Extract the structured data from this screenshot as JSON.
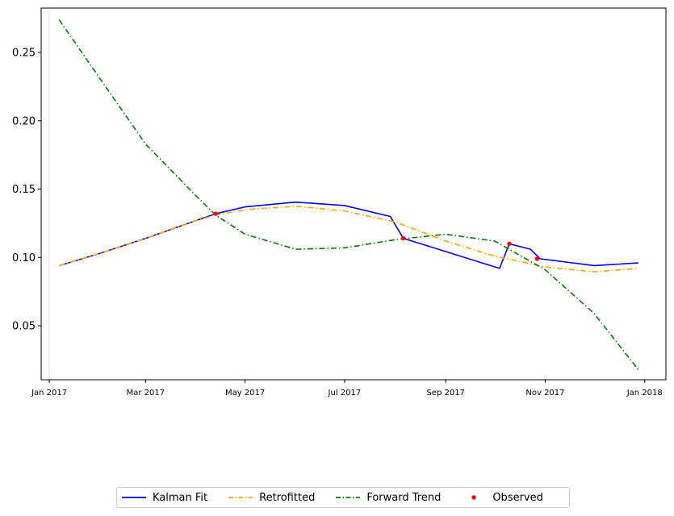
{
  "chart_data": {
    "type": "line",
    "title": "",
    "xlabel": "",
    "ylabel": "",
    "x_axis": {
      "type": "date",
      "range": [
        "2016-12-27",
        "2018-01-14"
      ],
      "ticks": [
        {
          "date": "2017-01-01",
          "label": "Jan 2017"
        },
        {
          "date": "2017-03-01",
          "label": "Mar 2017"
        },
        {
          "date": "2017-05-01",
          "label": "May 2017"
        },
        {
          "date": "2017-07-01",
          "label": "Jul 2017"
        },
        {
          "date": "2017-09-01",
          "label": "Sep 2017"
        },
        {
          "date": "2017-11-01",
          "label": "Nov 2017"
        },
        {
          "date": "2018-01-01",
          "label": "Jan 2018"
        }
      ]
    },
    "y_axis": {
      "range": [
        0.0105,
        0.2825
      ],
      "ticks": [
        {
          "value": 0.05,
          "label": "0.05"
        },
        {
          "value": 0.1,
          "label": "0.10"
        },
        {
          "value": 0.15,
          "label": "0.15"
        },
        {
          "value": 0.2,
          "label": "0.20"
        },
        {
          "value": 0.25,
          "label": "0.25"
        }
      ]
    },
    "vline": {
      "date": "2017-01-01",
      "color": "#e0e0e0"
    },
    "legend_position": "bottom-center, below plot",
    "series": [
      {
        "name": "Kalman Fit",
        "color": "#0000ff",
        "style": "solid",
        "points": [
          [
            "2017-01-07",
            0.094
          ],
          [
            "2017-02-01",
            0.103
          ],
          [
            "2017-03-01",
            0.114
          ],
          [
            "2017-04-01",
            0.127
          ],
          [
            "2017-04-13",
            0.132
          ],
          [
            "2017-05-01",
            0.137
          ],
          [
            "2017-06-01",
            0.1405
          ],
          [
            "2017-07-01",
            0.138
          ],
          [
            "2017-07-29",
            0.13
          ],
          [
            "2017-08-06",
            0.114
          ],
          [
            "2017-10-04",
            0.092
          ],
          [
            "2017-10-10",
            0.11
          ],
          [
            "2017-10-23",
            0.106
          ],
          [
            "2017-10-29",
            0.099
          ],
          [
            "2017-12-01",
            0.094
          ],
          [
            "2017-12-28",
            0.096
          ]
        ]
      },
      {
        "name": "Retrofitted",
        "color": "#ffa500",
        "style": "dashdot",
        "points": [
          [
            "2017-01-07",
            0.094
          ],
          [
            "2017-02-01",
            0.103
          ],
          [
            "2017-03-01",
            0.114
          ],
          [
            "2017-04-01",
            0.127
          ],
          [
            "2017-04-13",
            0.131
          ],
          [
            "2017-05-01",
            0.135
          ],
          [
            "2017-06-01",
            0.1375
          ],
          [
            "2017-07-01",
            0.134
          ],
          [
            "2017-08-01",
            0.126
          ],
          [
            "2017-09-01",
            0.112
          ],
          [
            "2017-10-01",
            0.101
          ],
          [
            "2017-11-01",
            0.093
          ],
          [
            "2017-12-01",
            0.0895
          ],
          [
            "2017-12-28",
            0.092
          ]
        ]
      },
      {
        "name": "Forward Trend",
        "color": "#008000",
        "style": "dashdot",
        "points": [
          [
            "2017-01-07",
            0.274
          ],
          [
            "2017-02-01",
            0.231
          ],
          [
            "2017-03-01",
            0.183
          ],
          [
            "2017-04-01",
            0.145
          ],
          [
            "2017-04-13",
            0.131
          ],
          [
            "2017-05-01",
            0.117
          ],
          [
            "2017-06-01",
            0.106
          ],
          [
            "2017-07-01",
            0.107
          ],
          [
            "2017-08-01",
            0.113
          ],
          [
            "2017-09-01",
            0.117
          ],
          [
            "2017-10-01",
            0.112
          ],
          [
            "2017-11-01",
            0.091
          ],
          [
            "2017-12-01",
            0.059
          ],
          [
            "2017-12-28",
            0.018
          ]
        ]
      }
    ],
    "observed": {
      "name": "Observed",
      "color": "#ff0000",
      "points": [
        [
          "2017-04-13",
          0.132
        ],
        [
          "2017-08-06",
          0.114
        ],
        [
          "2017-10-10",
          0.11
        ],
        [
          "2017-10-27",
          0.099
        ]
      ]
    }
  }
}
